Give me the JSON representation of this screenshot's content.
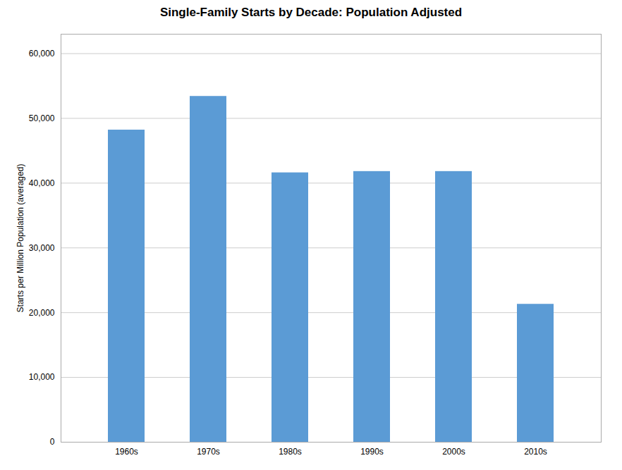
{
  "chart_data": {
    "type": "bar",
    "title": "Single-Family Starts by Decade: Population Adjusted",
    "categories": [
      "1960s",
      "1970s",
      "1980s",
      "1990s",
      "2000s",
      "2010s"
    ],
    "values": [
      48200,
      53400,
      41600,
      41800,
      41800,
      21300
    ],
    "color": "#5B9BD5",
    "ylabel": "Starts per Million Population (averaged)",
    "ylim": [
      0,
      63000
    ],
    "yticks": [
      0,
      {
        "value": 10000,
        "label": "10,000"
      },
      {
        "value": 20000,
        "label": "20,000"
      },
      {
        "value": 30000,
        "label": "30,000"
      },
      {
        "value": 40000,
        "label": "40,000"
      },
      {
        "value": 50000,
        "label": "50,000"
      },
      {
        "value": 60000,
        "label": "60,000"
      }
    ],
    "grid": true
  }
}
